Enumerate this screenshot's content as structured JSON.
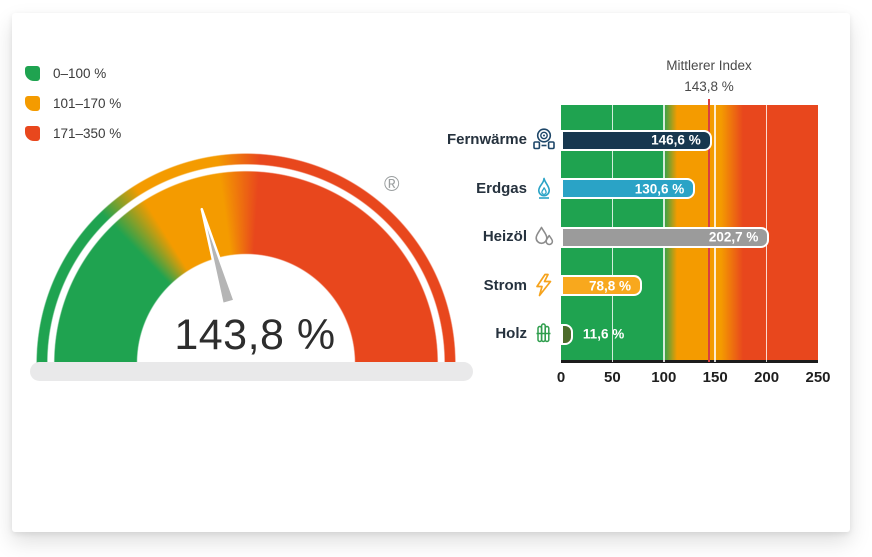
{
  "colors": {
    "green": "#1fa350",
    "orange": "#f49b00",
    "red": "#e8471d",
    "reference_line": "#d84040"
  },
  "legend": {
    "items": [
      {
        "label": "0–100 %",
        "color": "#1fa350"
      },
      {
        "label": "101–170 %",
        "color": "#f49b00"
      },
      {
        "label": "171–350 %",
        "color": "#e8471d"
      }
    ]
  },
  "gauge": {
    "value": 143.8,
    "value_label": "143,8 %",
    "min": 0,
    "max": 350,
    "registered_mark": "®"
  },
  "chart_data": {
    "type": "bar",
    "orientation": "horizontal",
    "title": "Mittlerer Index",
    "title_value": "143,8 %",
    "reference_line_value": 143.8,
    "categories": [
      "Fernwärme",
      "Erdgas",
      "Heizöl",
      "Strom",
      "Holz"
    ],
    "values": [
      146.6,
      130.6,
      202.7,
      78.8,
      11.6
    ],
    "value_labels": [
      "146,6 %",
      "130,6 %",
      "202,7 %",
      "78,8 %",
      "11,6 %"
    ],
    "bar_colors": [
      "#17374f",
      "#2aa3c6",
      "#9b9b9b",
      "#f8a81d",
      "#4c6b2a"
    ],
    "icons": [
      "district-heating",
      "gas-flame",
      "oil-drops",
      "lightning",
      "wood"
    ],
    "icon_colors": [
      "#1d4668",
      "#2aa3c6",
      "#8c8c8c",
      "#f6a31c",
      "#2f9e4d"
    ],
    "xlim": [
      0,
      250
    ],
    "x_ticks": [
      "0",
      "50",
      "100",
      "150",
      "200",
      "250"
    ],
    "x_tick_values": [
      0,
      50,
      100,
      150,
      200,
      250
    ],
    "gridline_positions": [
      50,
      100,
      150,
      200
    ],
    "grid": true,
    "zones": [
      {
        "range": "0–100",
        "color": "#1fa350"
      },
      {
        "range": "101–170",
        "color": "#f49b00"
      },
      {
        "range": "171–350",
        "color": "#e8471d"
      }
    ]
  }
}
